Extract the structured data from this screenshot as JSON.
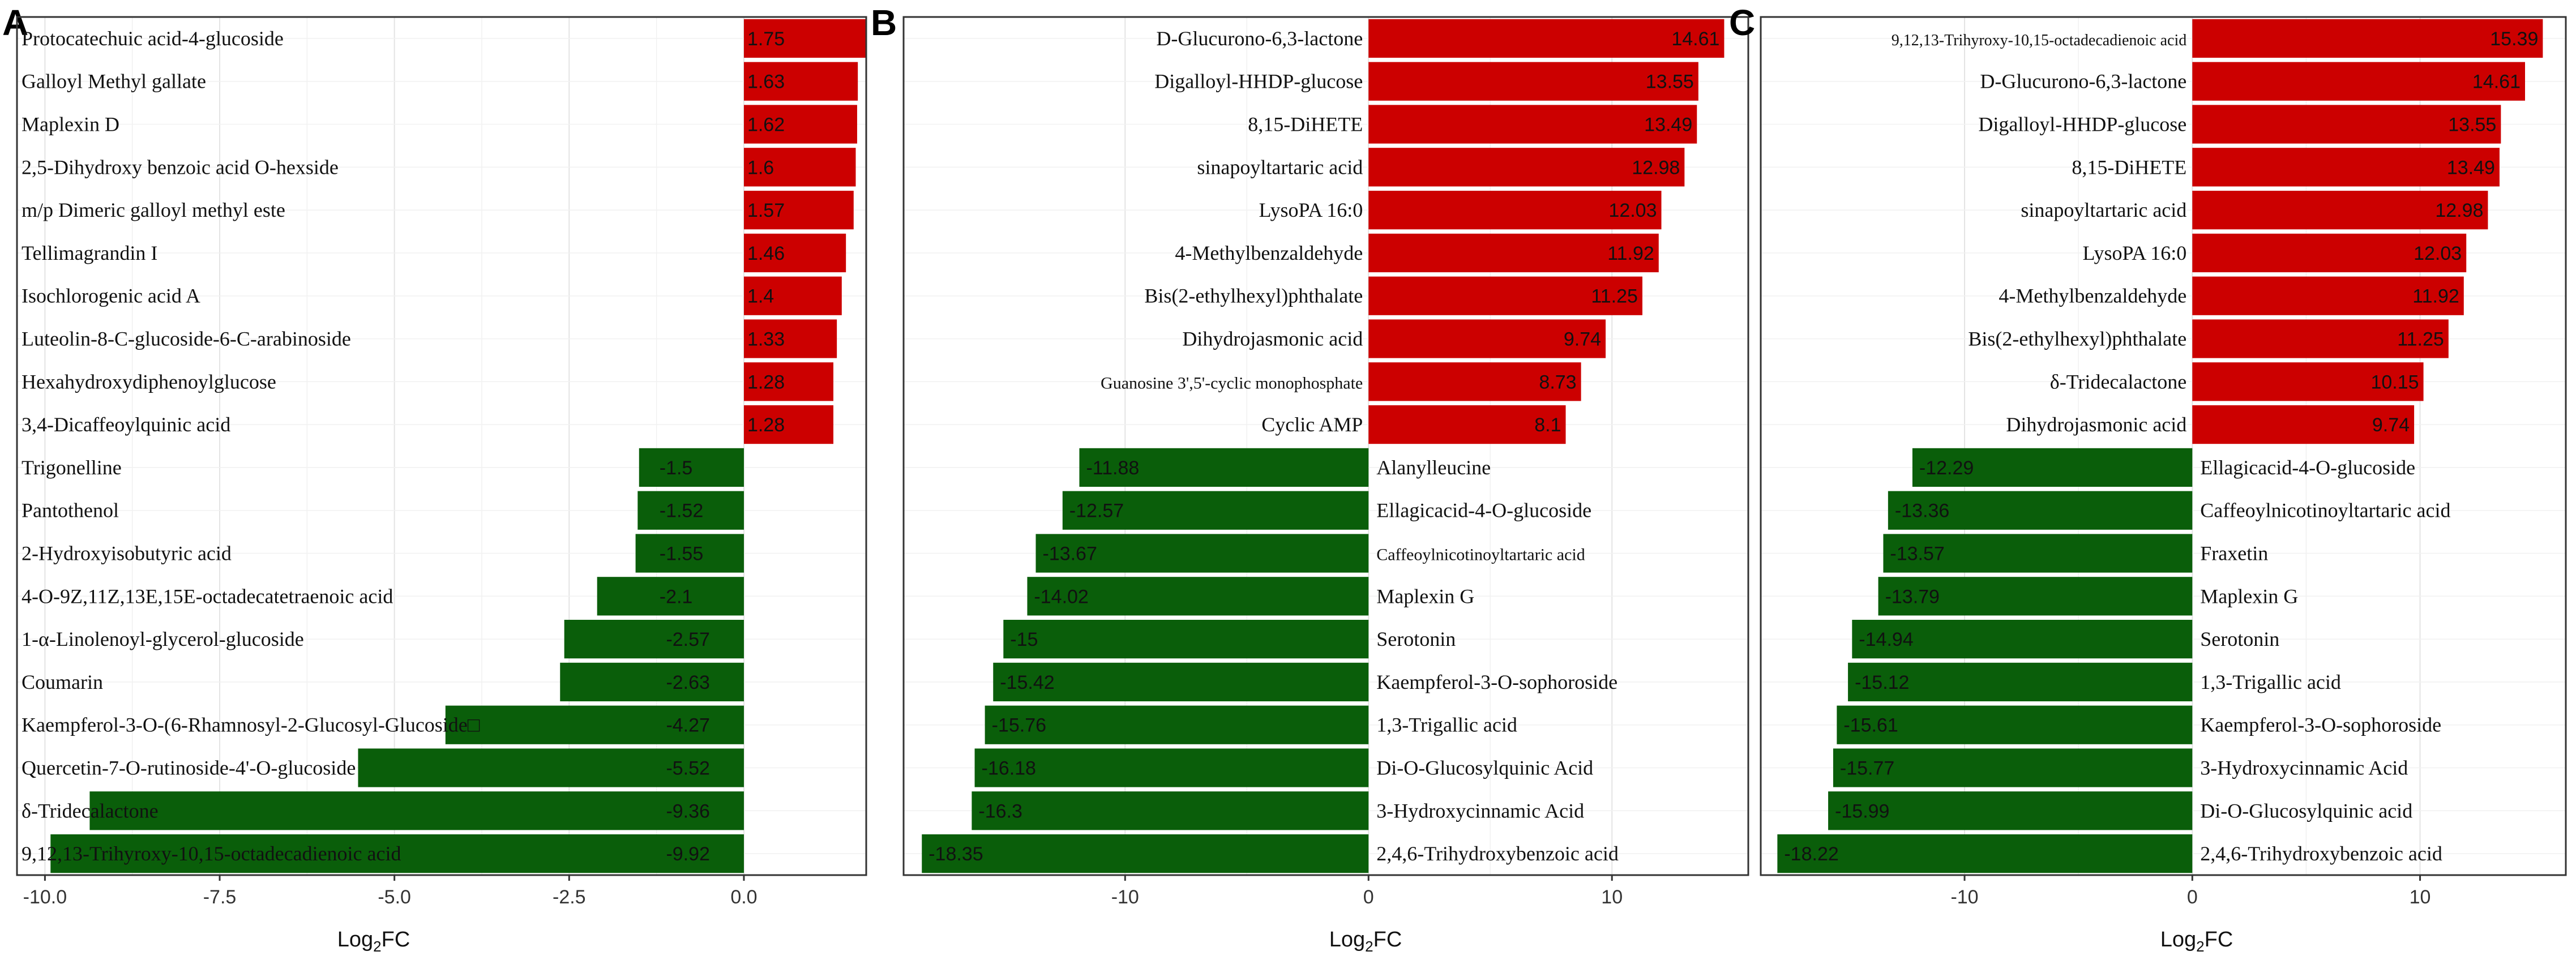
{
  "colors": {
    "positive": "#cc0000",
    "negative": "#0a5e0a"
  },
  "chart_data": [
    {
      "panel": "A",
      "type": "bar",
      "orientation": "horizontal",
      "xlabel": "Log2FC",
      "xlim": [
        -10.4,
        1.75
      ],
      "ticks": [
        -10.0,
        -7.5,
        -5.0,
        -2.5,
        0.0
      ],
      "tick_labels": [
        "-10.0",
        "-7.5",
        "-5.0",
        "-2.5",
        "0.0"
      ],
      "categories": [
        "Protocatechuic acid-4-glucoside",
        "Galloyl Methyl gallate",
        "Maplexin D",
        "2,5-Dihydroxy benzoic acid O-hexside",
        "m/p Dimeric galloyl methyl este",
        "Tellimagrandin I",
        "Isochlorogenic acid A",
        "Luteolin-8-C-glucoside-6-C-arabinoside",
        "Hexahydroxydiphenoylglucose",
        "3,4-Dicaffeoylquinic acid",
        "Trigonelline",
        "Pantothenol",
        "2-Hydroxyisobutyric acid",
        "4-O-9Z,11Z,13E,15E-octadecatetraenoic acid",
        "1-α-Linolenoyl-glycerol-glucoside",
        "Coumarin",
        "Kaempferol-3-O-(6-Rhamnosyl-2-Glucosyl-Glucoside□",
        "Quercetin-7-O-rutinoside-4'-O-glucoside",
        "δ-Tridecalactone",
        "9,12,13-Trihyroxy-10,15-octadecadienoic acid"
      ],
      "values": [
        1.75,
        1.63,
        1.62,
        1.6,
        1.57,
        1.46,
        1.4,
        1.33,
        1.28,
        1.28,
        -1.5,
        -1.52,
        -1.55,
        -2.1,
        -2.57,
        -2.63,
        -4.27,
        -5.52,
        -9.36,
        -9.92
      ],
      "value_labels": [
        "1.75",
        "1.63",
        "1.62",
        "1.6",
        "1.57",
        "1.46",
        "1.4",
        "1.33",
        "1.28",
        "1.28",
        "-1.5",
        "-1.52",
        "-1.55",
        "-2.1",
        "-2.57",
        "-2.63",
        "-4.27",
        "-5.52",
        "-9.36",
        "-9.92"
      ]
    },
    {
      "panel": "B",
      "type": "bar",
      "orientation": "horizontal",
      "xlabel": "Log2FC",
      "xlim": [
        -19.1,
        15.6
      ],
      "ticks": [
        -10,
        0,
        10
      ],
      "tick_labels": [
        "-10",
        "0",
        "10"
      ],
      "categories": [
        "D-Glucurono-6,3-lactone",
        "Digalloyl-HHDP-glucose",
        "8,15-DiHETE",
        "sinapoyltartaric acid",
        "LysoPA 16:0",
        "4-Methylbenzaldehyde",
        "Bis(2-ethylhexyl)phthalate",
        "Dihydrojasmonic acid",
        "Guanosine 3',5'-cyclic monophosphate",
        "Cyclic AMP",
        "Alanylleucine",
        "Ellagicacid-4-O-glucoside",
        "Caffeoylnicotinoyltartaric acid",
        "Maplexin G",
        "Serotonin",
        "Kaempferol-3-O-sophoroside",
        "1,3-Trigallic acid",
        "Di-O-Glucosylquinic Acid",
        "3-Hydroxycinnamic Acid",
        "2,4,6-Trihydroxybenzoic acid"
      ],
      "values": [
        14.61,
        13.55,
        13.49,
        12.98,
        12.03,
        11.92,
        11.25,
        9.74,
        8.73,
        8.1,
        -11.88,
        -12.57,
        -13.67,
        -14.02,
        -15,
        -15.42,
        -15.76,
        -16.18,
        -16.3,
        -18.35
      ],
      "value_labels": [
        "14.61",
        "13.55",
        "13.49",
        "12.98",
        "12.03",
        "11.92",
        "11.25",
        "9.74",
        "8.73",
        "8.1",
        "-11.88",
        "-12.57",
        "-13.67",
        "-14.02",
        "-15",
        "-15.42",
        "-15.76",
        "-16.18",
        "-16.3",
        "-18.35"
      ]
    },
    {
      "panel": "C",
      "type": "bar",
      "orientation": "horizontal",
      "xlabel": "Log2FC",
      "xlim": [
        -18.95,
        16.4
      ],
      "ticks": [
        -10,
        0,
        10
      ],
      "tick_labels": [
        "-10",
        "0",
        "10"
      ],
      "categories": [
        "9,12,13-Trihyroxy-10,15-octadecadienoic acid",
        "D-Glucurono-6,3-lactone",
        "Digalloyl-HHDP-glucose",
        "8,15-DiHETE",
        "sinapoyltartaric acid",
        "LysoPA 16:0",
        "4-Methylbenzaldehyde",
        "Bis(2-ethylhexyl)phthalate",
        "δ-Tridecalactone",
        "Dihydrojasmonic acid",
        "Ellagicacid-4-O-glucoside",
        "Caffeoylnicotinoyltartaric acid",
        "Fraxetin",
        "Maplexin G",
        "Serotonin",
        "1,3-Trigallic acid",
        "Kaempferol-3-O-sophoroside",
        "3-Hydroxycinnamic Acid",
        "Di-O-Glucosylquinic acid",
        "2,4,6-Trihydroxybenzoic acid"
      ],
      "values": [
        15.39,
        14.61,
        13.55,
        13.49,
        12.98,
        12.03,
        11.92,
        11.25,
        10.15,
        9.74,
        -12.29,
        -13.36,
        -13.57,
        -13.79,
        -14.94,
        -15.12,
        -15.61,
        -15.77,
        -15.99,
        -18.22
      ],
      "value_labels": [
        "15.39",
        "14.61",
        "13.55",
        "13.49",
        "12.98",
        "12.03",
        "11.92",
        "11.25",
        "10.15",
        "9.74",
        "-12.29",
        "-13.36",
        "-13.57",
        "-13.79",
        "-14.94",
        "-15.12",
        "-15.61",
        "-15.77",
        "-15.99",
        "-18.22"
      ]
    }
  ]
}
